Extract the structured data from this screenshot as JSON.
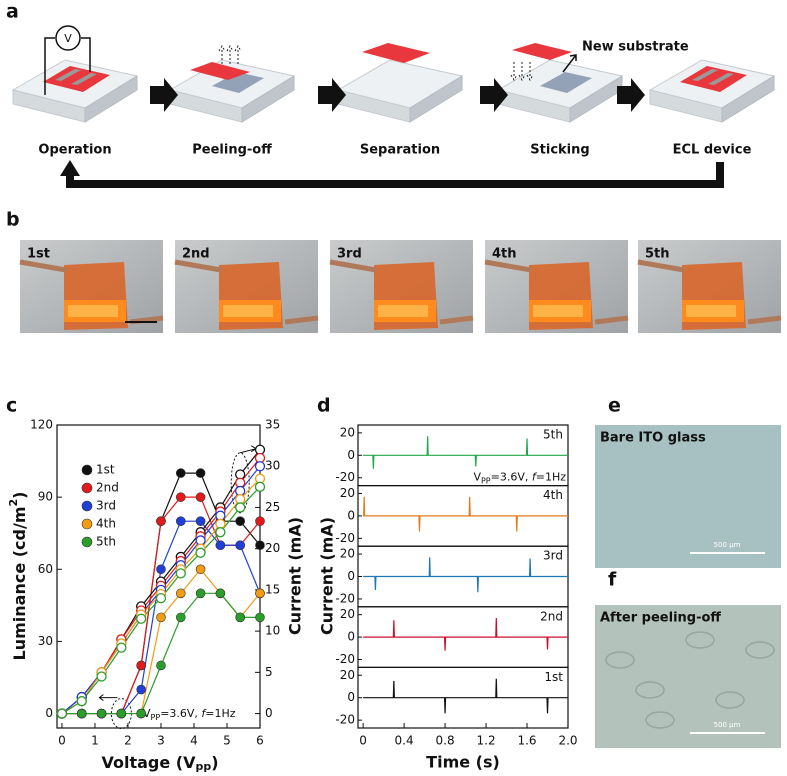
{
  "panel_labels": [
    "a",
    "b",
    "c",
    "d",
    "e",
    "f"
  ],
  "panel_a": {
    "voltmeter": "V",
    "steps": [
      "Operation",
      "Peeling-off",
      "Separation",
      "Sticking",
      "ECL device"
    ],
    "new_substrate": "New substrate"
  },
  "panel_b": {
    "labels": [
      "1st",
      "2nd",
      "3rd",
      "4th",
      "5th"
    ]
  },
  "panel_e": {
    "label": "Bare ITO glass",
    "scale": "500 µm"
  },
  "panel_f": {
    "label": "After peeling-off",
    "scale": "500 µm"
  },
  "chart_data": [
    {
      "type": "line",
      "x": [
        0,
        0.6,
        1.2,
        1.8,
        2.4,
        3.0,
        3.6,
        4.2,
        4.8,
        5.4,
        6.0
      ],
      "xlim": [
        -0.15,
        6
      ],
      "xticks": [
        0,
        1,
        2,
        3,
        4,
        5,
        6
      ],
      "ylim": [
        -6,
        120
      ],
      "yticks": [
        0,
        30,
        60,
        90,
        120
      ],
      "y2lim": [
        -1.75,
        35
      ],
      "y2ticks": [
        0,
        5,
        10,
        15,
        20,
        25,
        30,
        35
      ],
      "xlabel": [
        "Voltage (V",
        "pp",
        ")"
      ],
      "ylabel": [
        "Luminance (cd/m",
        "2",
        ")"
      ],
      "y2label": "Current (mA)",
      "annotation": [
        "V",
        "PP",
        "=3.6V, ",
        "f",
        "=1Hz"
      ],
      "legend": "upper left",
      "series": [
        {
          "name": "1st",
          "color": "#111111",
          "marker": "filled",
          "values": [
            0,
            0,
            0,
            0,
            20,
            80,
            100,
            100,
            80,
            80,
            70
          ]
        },
        {
          "name": "2nd",
          "color": "#e31a1c",
          "marker": "filled",
          "values": [
            0,
            0,
            0,
            0,
            20,
            80,
            90,
            90,
            70,
            70,
            80
          ]
        },
        {
          "name": "3rd",
          "color": "#1f3fd6",
          "marker": "filled",
          "values": [
            0,
            0,
            0,
            0,
            10,
            60,
            80,
            80,
            70,
            70,
            50
          ]
        },
        {
          "name": "4th",
          "color": "#f39c12",
          "marker": "filled",
          "values": [
            0,
            0,
            0,
            0,
            0,
            40,
            50,
            60,
            50,
            40,
            50
          ]
        },
        {
          "name": "5th",
          "color": "#2a9d2a",
          "marker": "filled",
          "values": [
            0,
            0,
            0,
            0,
            0,
            20,
            40,
            50,
            50,
            40,
            40
          ]
        },
        {
          "color": "#111111",
          "marker": "open",
          "axis": "y2",
          "values": [
            0,
            2,
            5,
            9,
            13,
            16,
            19,
            22,
            25,
            29,
            32
          ]
        },
        {
          "color": "#e31a1c",
          "marker": "open",
          "axis": "y2",
          "values": [
            0,
            2,
            5,
            9,
            12.5,
            15.5,
            18.5,
            21.5,
            24.5,
            28,
            31
          ]
        },
        {
          "color": "#1f3fd6",
          "marker": "open",
          "axis": "y2",
          "values": [
            0,
            2,
            5,
            8.5,
            12,
            15,
            18,
            21,
            24,
            27,
            30
          ]
        },
        {
          "color": "#f39c12",
          "marker": "open",
          "axis": "y2",
          "values": [
            0,
            1.5,
            5,
            8.5,
            12,
            14.5,
            17.5,
            20,
            23,
            26,
            28.5
          ]
        },
        {
          "color": "#2a9d2a",
          "marker": "open",
          "axis": "y2",
          "values": [
            0,
            1.5,
            4.5,
            8,
            11.5,
            14,
            17,
            19.5,
            22,
            25,
            27.5
          ]
        }
      ]
    },
    {
      "type": "line",
      "layout": "stacked",
      "xlim": [
        -0.05,
        2
      ],
      "xticks": [
        0,
        0.4,
        0.8,
        1.2,
        1.6,
        {
          "value": 2,
          "label": "2.0"
        }
      ],
      "ylim": [
        -27,
        27
      ],
      "yticks": [
        -20,
        0,
        20
      ],
      "xlabel": "Time (s)",
      "ylabel": "Current (mA)",
      "annotation": [
        "V",
        "PP",
        "=3.6V, ",
        "f",
        "=1Hz"
      ],
      "series": [
        {
          "name": "5th",
          "color": "#22a64a",
          "x": [
            0,
            0.095,
            0.1,
            0.105,
            0.625,
            0.63,
            0.635,
            1.095,
            1.1,
            1.105,
            1.595,
            1.6,
            1.605,
            2.0
          ],
          "values": [
            0,
            0,
            -12,
            0,
            0,
            17,
            0,
            0,
            -10,
            0,
            0,
            15,
            0,
            0
          ]
        },
        {
          "name": "4th",
          "color": "#e07b20",
          "x": [
            0,
            0.005,
            0.01,
            0.015,
            0.545,
            0.55,
            0.555,
            1.035,
            1.04,
            1.045,
            1.495,
            1.5,
            1.505,
            2.0
          ],
          "values": [
            0,
            0,
            17,
            0,
            0,
            -14,
            0,
            0,
            17,
            0,
            0,
            -14,
            0,
            0
          ]
        },
        {
          "name": "3rd",
          "color": "#1f77b4",
          "x": [
            0,
            0.115,
            0.12,
            0.125,
            0.645,
            0.65,
            0.655,
            1.115,
            1.12,
            1.125,
            1.625,
            1.63,
            1.635,
            2.0
          ],
          "values": [
            0,
            0,
            -12,
            0,
            0,
            17,
            0,
            0,
            -14,
            0,
            0,
            16,
            0,
            0
          ]
        },
        {
          "name": "2nd",
          "color": "#c8102e",
          "x": [
            0,
            0.295,
            0.3,
            0.305,
            0.795,
            0.8,
            0.805,
            1.295,
            1.3,
            1.305,
            1.795,
            1.8,
            1.805,
            2.0
          ],
          "values": [
            0,
            0,
            15,
            0,
            0,
            -12,
            0,
            0,
            17,
            0,
            0,
            -11,
            0,
            0
          ]
        },
        {
          "name": "1st",
          "color": "#111111",
          "x": [
            0,
            0.295,
            0.3,
            0.305,
            0.795,
            0.8,
            0.805,
            1.295,
            1.3,
            1.305,
            1.795,
            1.8,
            1.805,
            2.0
          ],
          "values": [
            0,
            0,
            15,
            0,
            0,
            -14,
            0,
            0,
            17,
            0,
            0,
            -14,
            0,
            0
          ]
        }
      ]
    }
  ]
}
